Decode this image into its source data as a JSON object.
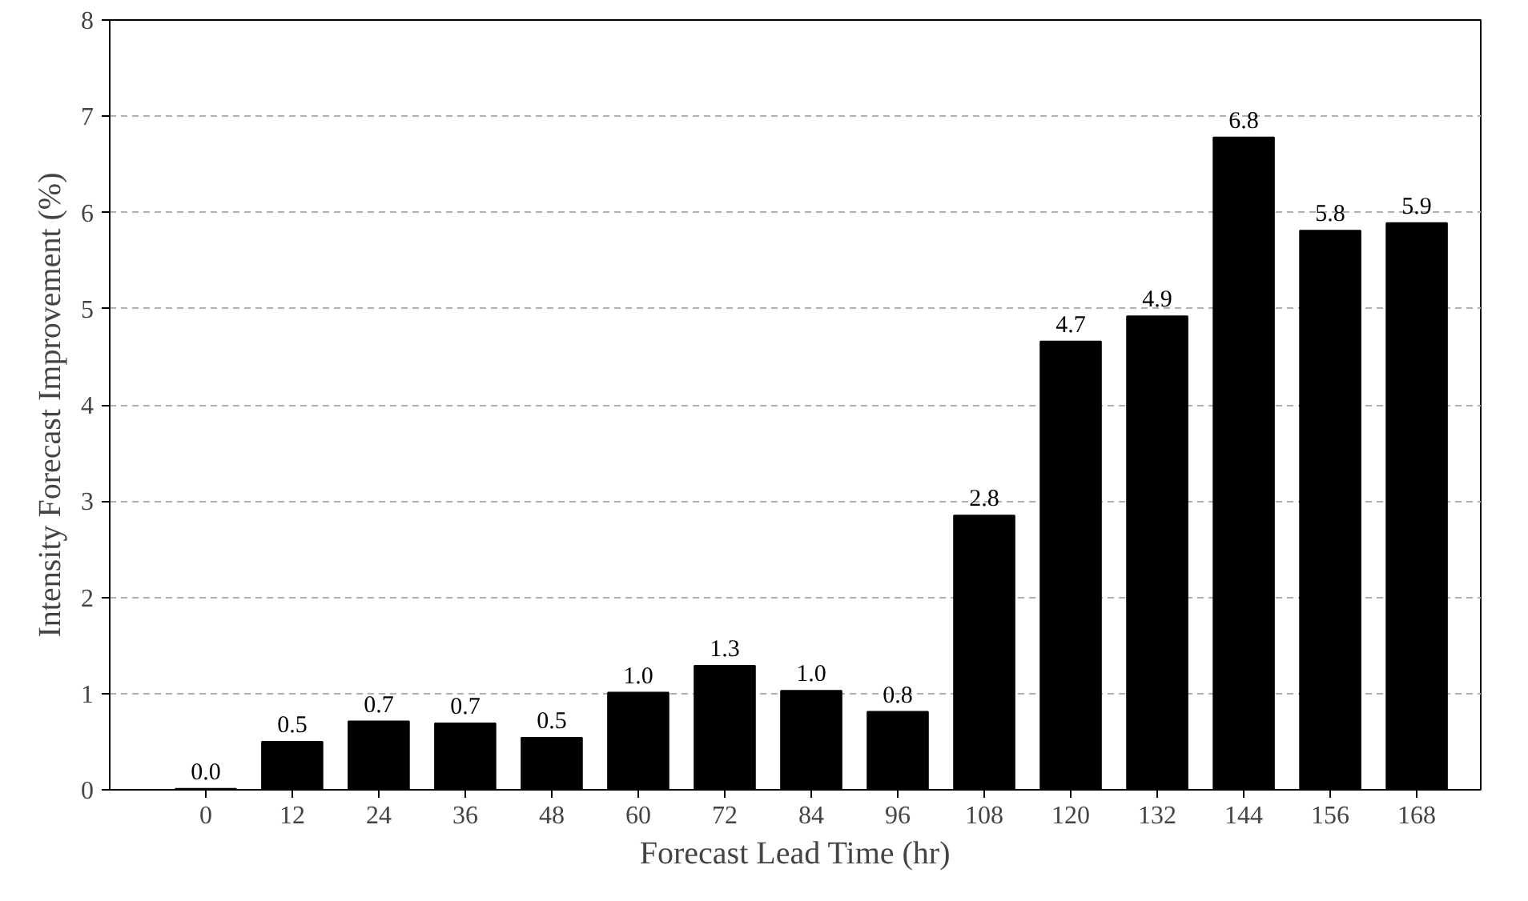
{
  "chart_data": {
    "type": "bar",
    "xlabel": "Forecast Lead Time (hr)",
    "ylabel": "Intensity Forecast Improvement (%)",
    "categories": [
      "0",
      "12",
      "24",
      "36",
      "48",
      "60",
      "72",
      "84",
      "96",
      "108",
      "120",
      "132",
      "144",
      "156",
      "168"
    ],
    "values": [
      0.01,
      0.5,
      0.71,
      0.69,
      0.54,
      1.01,
      1.29,
      1.03,
      0.81,
      2.85,
      4.66,
      4.92,
      6.78,
      5.81,
      5.89
    ],
    "value_labels": [
      "0.0",
      "0.5",
      "0.7",
      "0.7",
      "0.5",
      "1.0",
      "1.3",
      "1.0",
      "0.8",
      "2.8",
      "4.7",
      "4.9",
      "6.8",
      "5.8",
      "5.9"
    ],
    "color": "#000000",
    "ylim": [
      0,
      8
    ],
    "yticks": [
      0,
      1,
      2,
      3,
      4,
      5,
      6,
      7,
      8
    ],
    "grid": "y"
  }
}
